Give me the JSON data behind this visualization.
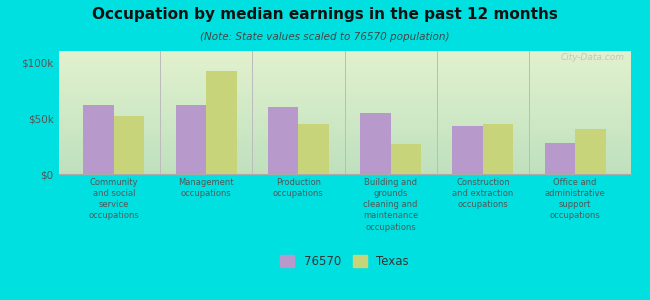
{
  "title": "Occupation by median earnings in the past 12 months",
  "subtitle": "(Note: State values scaled to 76570 population)",
  "background_color": "#00e0e0",
  "categories": [
    "Community\nand social\nservice\noccupations",
    "Management\noccupations",
    "Production\noccupations",
    "Building and\ngrounds\ncleaning and\nmaintenance\noccupations",
    "Construction\nand extraction\noccupations",
    "Office and\nadministrative\nsupport\noccupations"
  ],
  "values_76570": [
    62000,
    62000,
    60000,
    55000,
    43000,
    28000
  ],
  "values_texas": [
    52000,
    92000,
    45000,
    27000,
    45000,
    40000
  ],
  "color_76570": "#b899cc",
  "color_texas": "#c8d47a",
  "ylim": [
    0,
    110000
  ],
  "yticks": [
    0,
    50000,
    100000
  ],
  "ytick_labels": [
    "$0",
    "$50k",
    "$100k"
  ],
  "legend_labels": [
    "76570",
    "Texas"
  ],
  "watermark": "City-Data.com"
}
